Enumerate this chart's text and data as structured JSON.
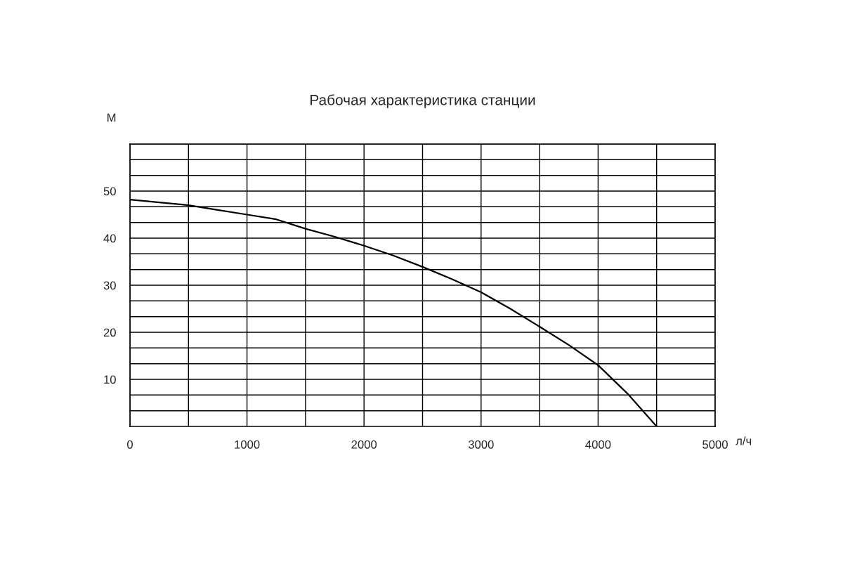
{
  "chart_data": {
    "type": "line",
    "title": "Рабочая характеристика станции",
    "xlabel": "л/ч",
    "ylabel": "М",
    "x": [
      0,
      250,
      500,
      750,
      1000,
      1250,
      1500,
      1750,
      2000,
      2250,
      2500,
      2750,
      3000,
      3250,
      3500,
      3750,
      4000,
      4250,
      4500
    ],
    "series": [
      {
        "color": "#000000",
        "values": [
          48.2,
          47.6,
          47,
          46,
          45,
          44,
          42,
          40.3,
          38.4,
          36.3,
          33.9,
          31.3,
          28.5,
          25,
          21.2,
          17.3,
          13,
          7,
          0
        ]
      }
    ],
    "xlim": [
      0,
      5000
    ],
    "ylim": [
      0,
      60
    ],
    "xticks": [
      {
        "value": 0,
        "label": "0"
      },
      {
        "value": 500,
        "label": null
      },
      1000,
      {
        "value": 1500,
        "label": null
      },
      2000,
      {
        "value": 2500,
        "label": null
      },
      3000,
      {
        "value": 3500,
        "label": null
      },
      4000,
      {
        "value": 4500,
        "label": null
      },
      5000
    ],
    "yticks": [
      {
        "value": 3.33,
        "label": null
      },
      {
        "value": 6.67,
        "label": null
      },
      10,
      {
        "value": 13.33,
        "label": null
      },
      {
        "value": 16.67,
        "label": null
      },
      20,
      {
        "value": 23.33,
        "label": null
      },
      {
        "value": 26.67,
        "label": null
      },
      30,
      {
        "value": 33.33,
        "label": null
      },
      {
        "value": 36.67,
        "label": null
      },
      40,
      {
        "value": 43.33,
        "label": null
      },
      {
        "value": 46.67,
        "label": null
      },
      50,
      {
        "value": 53.33,
        "label": null
      },
      {
        "value": 56.67,
        "label": null
      },
      {
        "value": 60,
        "label": null
      }
    ],
    "grid": true,
    "marker": "none",
    "line_style": "solid",
    "legend": false
  }
}
